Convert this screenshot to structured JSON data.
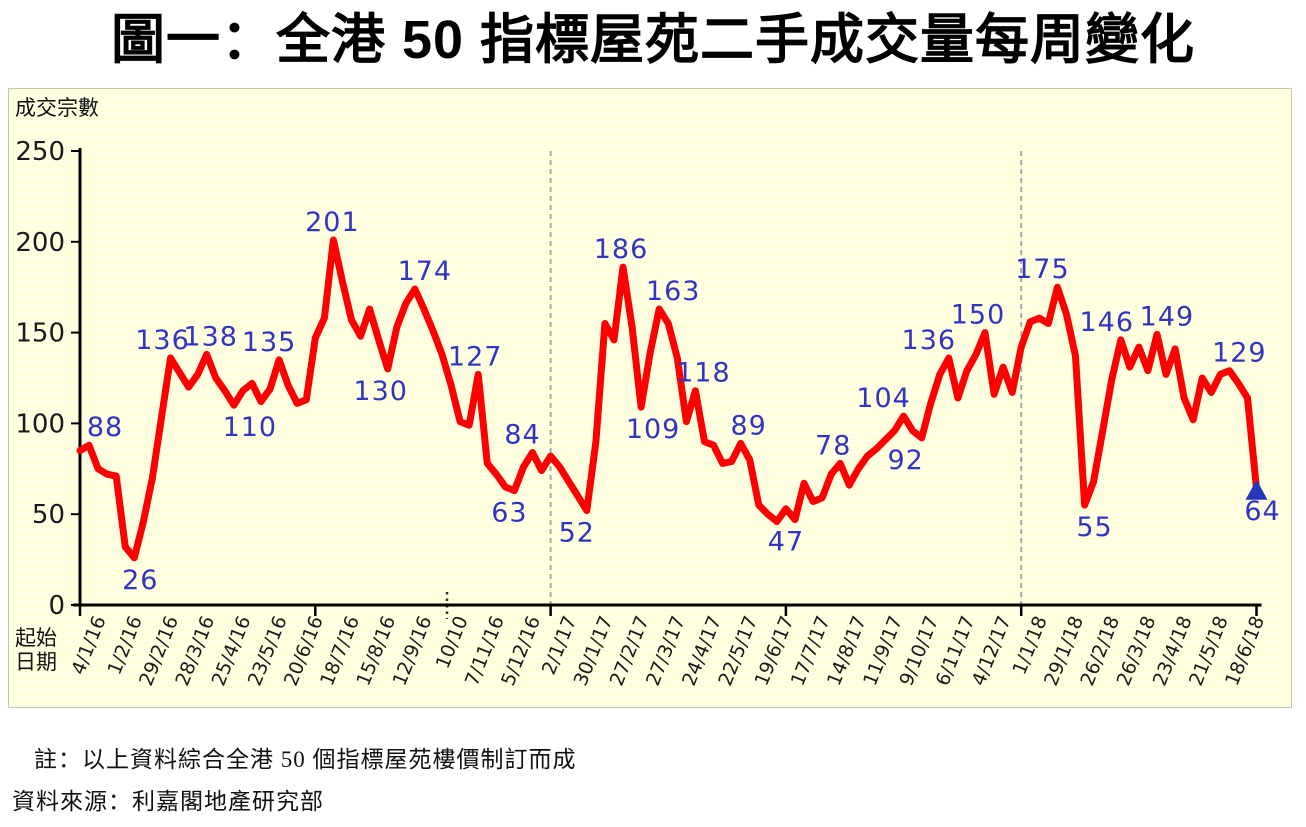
{
  "page": {
    "title": "圖一：全港 50 指標屋苑二手成交量每周變化"
  },
  "footer": {
    "note": "註：以上資料綜合全港 50 個指標屋苑樓價制訂而成",
    "source": "資料來源：利嘉閣地產研究部"
  },
  "colors": {
    "line": "#ff0000",
    "point_label": "#3333c4",
    "axis": "#000000",
    "tick_text": "#1a1a1a",
    "year_divider": "#a8a8a8",
    "plot_background": "#ffffdc",
    "last_marker": "#2238b8"
  },
  "chart_data": {
    "type": "line",
    "title": "圖一：全港 50 指標屋苑二手成交量每周變化",
    "ylabel": "成交宗數",
    "xlabel_lines": [
      "起始",
      "日期"
    ],
    "ylim": [
      0,
      250
    ],
    "yticks": [
      0,
      50,
      100,
      150,
      200,
      250
    ],
    "x_tick_step_weeks": 4,
    "x_tick_labels": [
      "4/1/16",
      "1/2/16",
      "29/2/16",
      "28/3/16",
      "25/4/16",
      "23/5/16",
      "20/6/16",
      "18/7/16",
      "15/8/16",
      "12/9/16",
      "10/10",
      "7/11/16",
      "5/12/16",
      "2/1/17",
      "30/1/17",
      "27/2/17",
      "27/3/17",
      "24/4/17",
      "22/5/17",
      "19/6/17",
      "17/7/17",
      "14/8/17",
      "11/9/17",
      "9/10/17",
      "6/11/17",
      "4/12/17",
      "1/1/18",
      "29/1/18",
      "26/2/18",
      "26/3/18",
      "23/4/18",
      "21/5/18",
      "18/6/18"
    ],
    "half_year_tick_weeks": [
      0,
      26,
      52,
      78,
      104,
      130
    ],
    "year_divider_weeks": [
      52,
      104
    ],
    "dotted_marker_week": 40,
    "grid": "off",
    "legend": "none",
    "series": [
      {
        "name": "全港50指標屋苑二手成交量(每周)",
        "color": "#ff0000",
        "values": [
          85,
          88,
          75,
          72,
          71,
          32,
          26,
          46,
          70,
          103,
          136,
          128,
          120,
          127,
          138,
          125,
          118,
          110,
          118,
          122,
          112,
          119,
          135,
          121,
          111,
          113,
          147,
          158,
          201,
          178,
          157,
          148,
          163,
          146,
          130,
          153,
          166,
          174,
          163,
          151,
          138,
          121,
          101,
          99,
          127,
          78,
          72,
          65,
          63,
          76,
          84,
          74,
          82,
          76,
          68,
          60,
          52,
          90,
          155,
          146,
          186,
          153,
          109,
          139,
          163,
          155,
          136,
          101,
          118,
          90,
          88,
          78,
          79,
          89,
          80,
          55,
          50,
          46,
          53,
          47,
          67,
          57,
          59,
          72,
          78,
          66,
          75,
          82,
          86,
          91,
          96,
          104,
          96,
          92,
          111,
          127,
          136,
          114,
          129,
          138,
          150,
          116,
          131,
          117,
          142,
          156,
          158,
          155,
          175,
          160,
          137,
          55,
          68,
          96,
          124,
          146,
          131,
          142,
          129,
          149,
          127,
          141,
          114,
          102,
          125,
          117,
          127,
          129,
          122,
          114,
          64
        ]
      }
    ],
    "point_labels": [
      {
        "week": 1,
        "value": 88,
        "pos": "above",
        "dx": 16
      },
      {
        "week": 6,
        "value": 26,
        "pos": "below",
        "dx": 6
      },
      {
        "week": 10,
        "value": 136,
        "pos": "above",
        "dx": -8
      },
      {
        "week": 14,
        "value": 138,
        "pos": "above",
        "dx": 4
      },
      {
        "week": 17,
        "value": 110,
        "pos": "below",
        "dx": 16
      },
      {
        "week": 22,
        "value": 135,
        "pos": "above",
        "dx": -10
      },
      {
        "week": 28,
        "value": 201,
        "pos": "above",
        "dx": -1
      },
      {
        "week": 34,
        "value": 130,
        "pos": "below",
        "dx": -7
      },
      {
        "week": 37,
        "value": 174,
        "pos": "above",
        "dx": 10
      },
      {
        "week": 44,
        "value": 127,
        "pos": "above",
        "dx": -3
      },
      {
        "week": 48,
        "value": 63,
        "pos": "below",
        "dx": -5
      },
      {
        "week": 50,
        "value": 84,
        "pos": "above",
        "dx": -10
      },
      {
        "week": 56,
        "value": 52,
        "pos": "below",
        "dx": -10
      },
      {
        "week": 60,
        "value": 186,
        "pos": "above",
        "dx": -2
      },
      {
        "week": 62,
        "value": 109,
        "pos": "below",
        "dx": 12
      },
      {
        "week": 64,
        "value": 163,
        "pos": "above",
        "dx": 14
      },
      {
        "week": 68,
        "value": 118,
        "pos": "above",
        "dx": 8
      },
      {
        "week": 73,
        "value": 89,
        "pos": "above",
        "dx": 8
      },
      {
        "week": 79,
        "value": 47,
        "pos": "below",
        "dx": -9
      },
      {
        "week": 84,
        "value": 78,
        "pos": "above",
        "dx": -7
      },
      {
        "week": 91,
        "value": 104,
        "pos": "above",
        "dx": -20
      },
      {
        "week": 93,
        "value": 92,
        "pos": "below",
        "dx": -16
      },
      {
        "week": 96,
        "value": 136,
        "pos": "above",
        "dx": -20
      },
      {
        "week": 100,
        "value": 150,
        "pos": "above",
        "dx": -7
      },
      {
        "week": 108,
        "value": 175,
        "pos": "above",
        "dx": -15
      },
      {
        "week": 111,
        "value": 55,
        "pos": "below",
        "dx": 10
      },
      {
        "week": 115,
        "value": 146,
        "pos": "above",
        "dx": -14
      },
      {
        "week": 119,
        "value": 149,
        "pos": "above",
        "dx": 10
      },
      {
        "week": 127,
        "value": 129,
        "pos": "above",
        "dx": 10
      },
      {
        "week": 130,
        "value": 64,
        "pos": "below",
        "dx": 6
      }
    ],
    "last_point_marker": {
      "shape": "triangle-up",
      "color": "#2238b8",
      "week": 130,
      "value": 64
    }
  }
}
